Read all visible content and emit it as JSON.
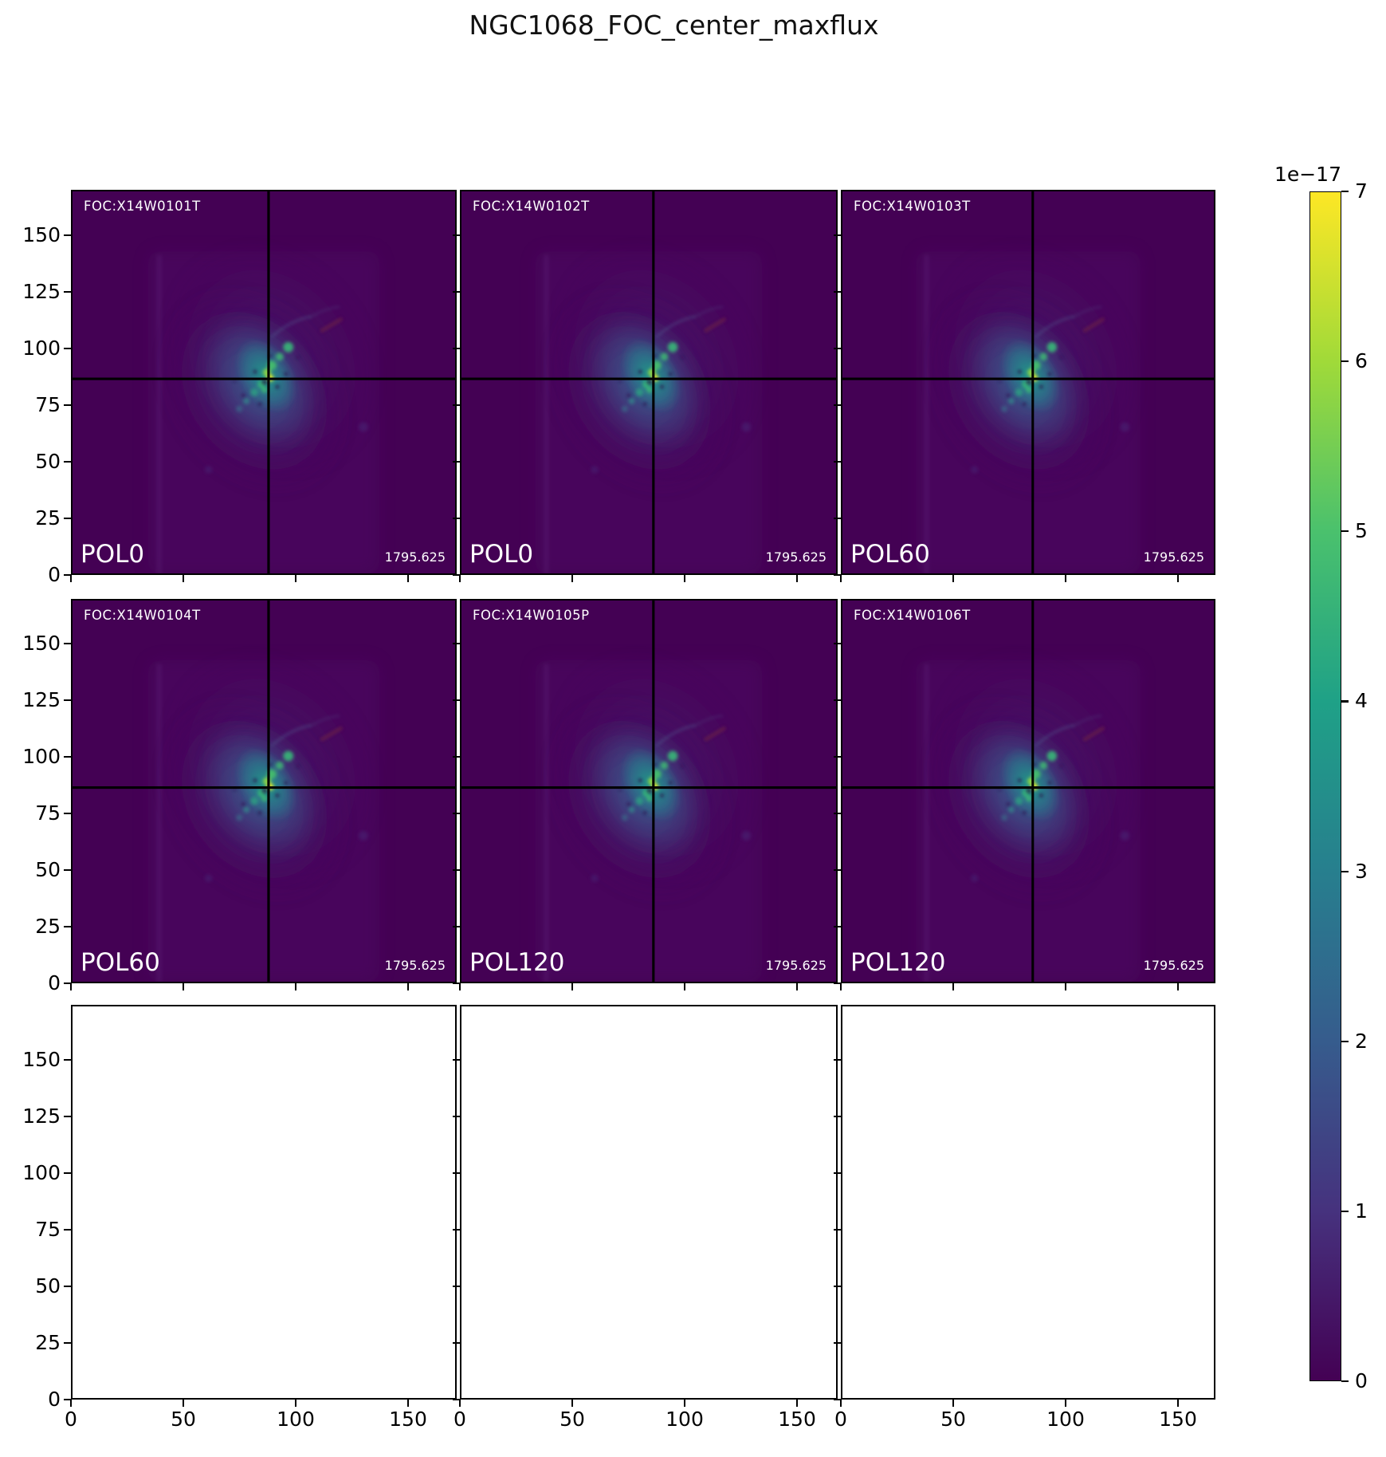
{
  "title": "NGC1068_FOC_center_maxflux",
  "chart_data": {
    "type": "heatmap",
    "title": "NGC1068_FOC_center_maxflux",
    "grid": "3 columns x 3 rows of subplots; top two rows show NGC1068 FOC polarimetry images with black crosshairs, bottom row panels are empty",
    "colormap": "viridis",
    "x_ticks": [
      0,
      50,
      100,
      150
    ],
    "y_ticks": [
      0,
      25,
      50,
      75,
      100,
      125,
      150
    ],
    "xlim": [
      0,
      170
    ],
    "ylim": [
      0,
      170
    ],
    "crosshair_data_coords": {
      "x": 85,
      "y": 85
    },
    "colorbar": {
      "offset_label": "1e−17",
      "ticks": [
        7,
        6,
        5,
        4,
        3,
        2,
        1,
        0
      ],
      "vmin": 0,
      "vmax": 7
    },
    "panels": [
      {
        "obs_id": "FOC:X14W0101T",
        "filter": "POL0",
        "value": "1795.625"
      },
      {
        "obs_id": "FOC:X14W0102T",
        "filter": "POL0",
        "value": "1795.625"
      },
      {
        "obs_id": "FOC:X14W0103T",
        "filter": "POL60",
        "value": "1795.625"
      },
      {
        "obs_id": "FOC:X14W0104T",
        "filter": "POL60",
        "value": "1795.625"
      },
      {
        "obs_id": "FOC:X14W0105P",
        "filter": "POL120",
        "value": "1795.625"
      },
      {
        "obs_id": "FOC:X14W0106T",
        "filter": "POL120",
        "value": "1795.625"
      }
    ]
  },
  "colors": {
    "figure_background": "#ffffff",
    "panel_background": "#440154",
    "crosshair": "#000000",
    "label_text": "#ffffff",
    "viridis_stops": [
      "#440154",
      "#46327e",
      "#365c8d",
      "#277f8e",
      "#1fa187",
      "#4ac16d",
      "#a0da39",
      "#fde725"
    ]
  }
}
